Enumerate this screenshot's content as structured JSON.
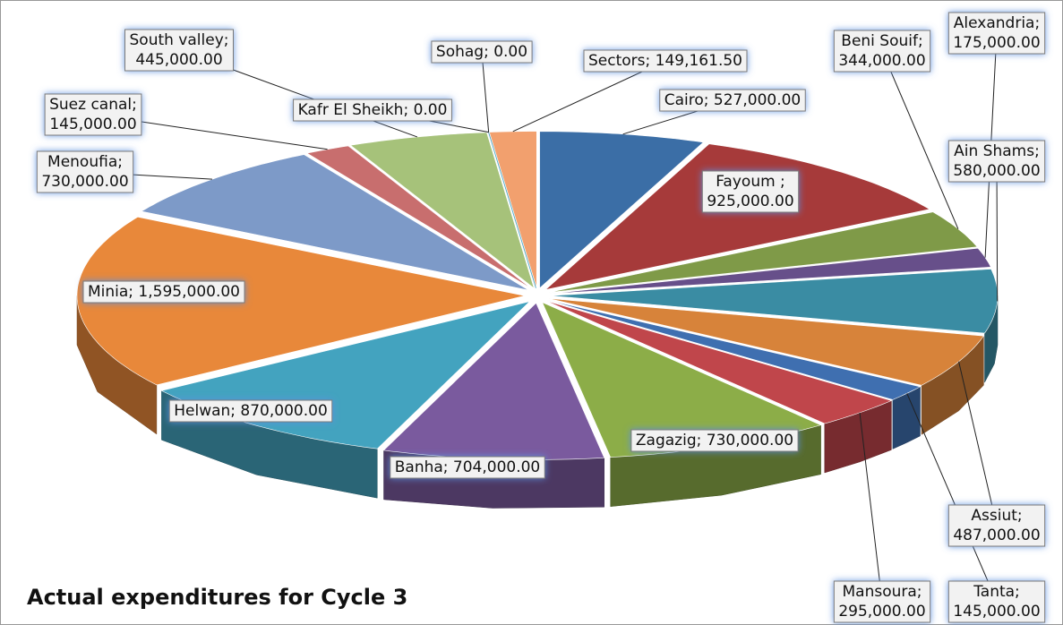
{
  "chart_data": {
    "type": "pie",
    "title": "Actual expenditures for Cycle 3",
    "categories": [
      "Cairo",
      "Fayoum",
      "Beni Souif",
      "Alexandria",
      "Ain Shams",
      "Assiut",
      "Tanta",
      "Mansoura",
      "Zagazig",
      "Banha",
      "Helwan",
      "Minia",
      "Menoufia",
      "Suez canal",
      "South valley",
      "Kafr El Sheikh",
      "Sohag",
      "Sectors"
    ],
    "values": [
      527000,
      925000,
      344000,
      175000,
      580000,
      487000,
      145000,
      295000,
      730000,
      704000,
      870000,
      1595000,
      730000,
      145000,
      445000,
      0,
      0,
      149161.5
    ],
    "value_labels": [
      "Cairo; 527,000.00",
      "Fayoum ; 925,000.00",
      "Beni Souif; 344,000.00",
      "Alexandria; 175,000.00",
      "Ain Shams; 580,000.00",
      "Assiut; 487,000.00",
      "Tanta; 145,000.00",
      "Mansoura; 295,000.00",
      "Zagazig; 730,000.00",
      "Banha; 704,000.00",
      "Helwan; 870,000.00",
      "Minia; 1,595,000.00",
      "Menoufia; 730,000.00",
      "Suez canal; 145,000.00",
      "South valley; 445,000.00",
      "Kafr El Sheikh; 0.00",
      "Sohag; 0.00",
      "Sectors; 149,161.50"
    ],
    "colors": [
      "#3b6ea6",
      "#a63a3a",
      "#7f9a48",
      "#674f8a",
      "#3a8ca3",
      "#d7833a",
      "#3f6fb0",
      "#c0464b",
      "#8cad48",
      "#7a5a9e",
      "#43a3bf",
      "#e8883a",
      "#7d9ac8",
      "#c86e6e",
      "#a6c27a",
      "#8f7bb0",
      "#54b5cf",
      "#f2a06e"
    ]
  }
}
